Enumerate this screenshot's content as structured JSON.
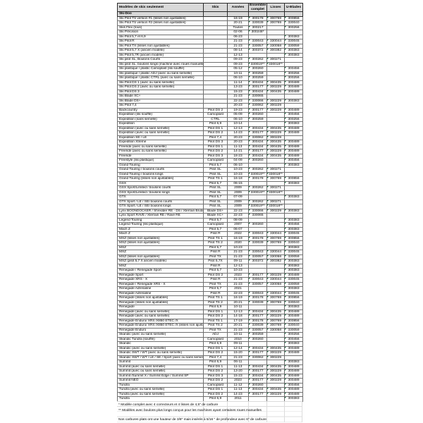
{
  "colors": {
    "header_bg": "#d9d9d9",
    "section_bg": "#d9d9d9",
    "grid_border": "#6f6f6f",
    "outer_border": "#2b2b2b",
    "error_indicator_green": "#1e7145",
    "faint_gridline": "#dcdcdc"
  },
  "table": {
    "headers": [
      "Modèles de skis seulement",
      "Skis",
      "Années",
      "Ensemble complet",
      "Lisses",
      "U-Blades"
    ],
    "section": "Ski-Doo",
    "rows": [
      [
        "Ski Pilot TS version #1 (lisses non ajustables)",
        "",
        "16-19",
        "300178",
        "300769",
        "300856"
      ],
      [
        "Ski Pilot TS version #2 (lisses non ajustables)",
        "",
        "20-21",
        "330039",
        "300769",
        "330040"
      ],
      [
        "Skis Flex (tous)",
        "",
        "Toutes",
        "300217",
        "",
        "300256"
      ],
      [
        "Ski Précision",
        "",
        "02-06",
        "300248*",
        "",
        ""
      ],
      [
        "Ski Pilot 5,7 et 6,9",
        "",
        "06-23",
        "",
        "",
        "300383"
      ],
      [
        "Ski Pilot R",
        "",
        "21-23",
        "330043",
        "330044",
        "330045"
      ],
      [
        "Ski Pilot TX (lisses non ajustables)",
        "",
        "21-23",
        "330057",
        "330058",
        "330059"
      ],
      [
        "Ski Pilot 5,7 X (ancien modèle)",
        "",
        "08-14",
        "300372",
        "300382",
        "300383"
      ],
      [
        "Ski Pilot 5,7R (ancien modèle)",
        "",
        "12-13",
        "",
        "",
        "300383"
      ],
      [
        "Ski pilot SL, Boulons Courts",
        "",
        "09-23",
        "300262",
        "300271",
        ""
      ],
      [
        "Ski pilot SL, boulons longs (machine avec roues manuelles)",
        "",
        "09-23",
        "330019**",
        "330018**",
        ""
      ],
      [
        "Ski plastique / plastic Camoplast (ski soufflé)",
        "",
        "05-12",
        "300260",
        "",
        "300456"
      ],
      [
        "Ski plastique / plastic ADJ (avec ou sans semelle)",
        "",
        "10-11",
        "300259",
        "",
        "300256"
      ],
      [
        "Ski plastique / plastic CTRL (avec ou sans semelle)",
        "",
        "06-10",
        "300259",
        "",
        "300256"
      ],
      [
        "Ski Pilot DS 1 (avec ou sans semelle)",
        "",
        "11-14",
        "300434",
        "300435",
        "300489"
      ],
      [
        "Ski Pilot DS 2 (avec ou sans semelle)",
        "",
        "13-23",
        "300177",
        "300229",
        "300489"
      ],
      [
        "Ski Pilot DS 3",
        "",
        "15-23",
        "300434",
        "300435",
        "300489"
      ],
      [
        "Ski Blade XC+",
        "",
        "21-23",
        "330065",
        "",
        ""
      ],
      [
        "Ski Blade DS+",
        "",
        "22-23",
        "330066",
        "300229",
        "300383"
      ],
      [
        "Ski Pilot 7,4",
        "",
        "20-23",
        "330062",
        "300229",
        ""
      ],
      [
        "Backcountry",
        "Pilot DS 2",
        "19-23",
        "300177",
        "300229",
        "300489"
      ],
      [
        "Expedition (ski soufflé)",
        "Camoplast",
        "05-09",
        "300260",
        "",
        "300456"
      ],
      [
        "Expedition (sans semelle)",
        "CTRL",
        "06-10",
        "300259",
        "",
        "300256"
      ],
      [
        "Expedition",
        "Pilot 6,9",
        "10-14",
        "",
        "",
        "300383"
      ],
      [
        "Expedition (avec ou sans semelle)",
        "Pilot DS 1",
        "12-13",
        "300434",
        "300435",
        "300489"
      ],
      [
        "Expedition (avec ou sans semelle)",
        "Pilot DS 2",
        "14-23",
        "300177",
        "300229",
        "300489"
      ],
      [
        "Expedition SE / LE",
        "Pilot 7,4",
        "20-23",
        "330062",
        "300229",
        ""
      ],
      [
        "Expedition Xtreme",
        "Pilot DS 3",
        "20-23",
        "300434",
        "300435",
        "300489"
      ],
      [
        "Freeride (avec ou sans semelle)",
        "Pilot DS 1",
        "11-13",
        "300434",
        "300435",
        "300489"
      ],
      [
        "Freeride (avec ou sans semelle)",
        "Pilot DS 2",
        "14-21",
        "300177",
        "300229",
        "300489"
      ],
      [
        "Freeride",
        "Pilot DS 3",
        "18-23",
        "300434",
        "300435",
        "300489"
      ],
      [
        "Freestyle (ski plastique)",
        "Camoplast",
        "04-09",
        "300260",
        "",
        "300456"
      ],
      [
        "Grand Touring",
        "Pilot 5,7",
        "06-10",
        "",
        "",
        "300383"
      ],
      [
        "Grand Touring / boulons courts",
        "Pilot SL",
        "10-23",
        "300262",
        "300271",
        ""
      ],
      [
        "Grand Touring / boulons longs",
        "Pilot SL",
        "10-23",
        "330019**",
        "330018**",
        ""
      ],
      [
        "Grand Touring (lisses non ajustables)",
        "Pilot TS 1",
        "16-18",
        "300178",
        "300769",
        "300856"
      ],
      [
        "GSX",
        "Pilot 5,7",
        "06-15",
        "",
        "",
        "300383"
      ],
      [
        "GSX Sport/Limited / boulons courts",
        "Pilot SL",
        "2009",
        "300262",
        "300271",
        ""
      ],
      [
        "GSX Sport/Limited / boulons longs",
        "Pilot SL",
        "2009",
        "330019**",
        "330018**",
        ""
      ],
      [
        "GTX",
        "Pilot 5,7",
        "07-09",
        "",
        "",
        "300383"
      ],
      [
        "GTX Sport / LE / SE/ boulons courts",
        "Pilot SL",
        "2009",
        "300262",
        "300271",
        ""
      ],
      [
        "GTX Sport / LE / SE/ boulons longs",
        "Pilot SL",
        "2009",
        "330019**",
        "330018**",
        ""
      ],
      [
        "Lynx BOONDOCKER / Shredder RE - DS / Xterrain Brutal",
        "Blade DS+",
        "22-23",
        "330066",
        "300229",
        "300383"
      ],
      [
        "Lynx Sport RAVE / Xterrain RE / Rave RE",
        "Blade XC+",
        "22-23",
        "330065",
        "",
        ""
      ],
      [
        "Legend Touring",
        "Pilot 5,7",
        "08-09",
        "",
        "",
        "300383"
      ],
      [
        "Legend Touring (ski plastique)",
        "Camoplast",
        "2007",
        "300260",
        "",
        "300456"
      ],
      [
        "Mach Z",
        "Pilot 5,7",
        "06-07",
        "",
        "",
        "300383"
      ],
      [
        "Mach Z",
        "Pilot R",
        "2022",
        "330043",
        "330044",
        "330045"
      ],
      [
        "MXZ (lisses non ajustables)",
        "Pilot TS 1",
        "16-19",
        "300178",
        "300769",
        "300856"
      ],
      [
        "MXZ (lisses non ajustables)",
        "Pilot TS 2",
        "2020",
        "330039",
        "300769",
        "330040"
      ],
      [
        "MXZ",
        "Pilot 5,7",
        "10-23",
        "",
        "",
        "300383"
      ],
      [
        "MXZ",
        "Pilot R",
        "21-23",
        "330043",
        "330044",
        "330045"
      ],
      [
        "MXZ (lisses non ajustables)",
        "Pilot TX",
        "21-23",
        "330057",
        "330058",
        "330059"
      ],
      [
        "MXZ (pilot 5,7 X ancien modèle)",
        "Pilot 5,7X",
        "09-11",
        "300372",
        "300382",
        "300383"
      ],
      [
        "MXZ",
        "Pilot R",
        "12-13",
        "",
        "",
        "300383"
      ],
      [
        "Renegade / Renegade Sport",
        "Pilot 5,7",
        "10-23",
        "",
        "",
        "300383"
      ],
      [
        "Renegade Sport",
        "Pilot DS 2",
        "2023",
        "300177",
        "300229",
        "300489"
      ],
      [
        "Renegade XRS - X",
        "Pilot R",
        "21-23",
        "330043",
        "330044",
        "330045"
      ],
      [
        "Renegade / Renegade XRS - X",
        "Pilot TX",
        "21-23",
        "330057",
        "330058",
        "330059"
      ],
      [
        "Renegade Adrenaline",
        "Pilot 5,7",
        "2021",
        "",
        "",
        "300383"
      ],
      [
        "Renegade Adrenaline",
        "Pilot R",
        "22-23",
        "330043",
        "330044",
        "330045"
      ],
      [
        "Renegade (lisses non ajustables)",
        "Pilot TS 1",
        "16-19",
        "300178",
        "300769",
        "300856"
      ],
      [
        "Renegade (lisses non ajustables)",
        "Pilot TS 2",
        "20-21",
        "330039",
        "300769",
        "330040"
      ],
      [
        "Renegade",
        "Pilot 6,9",
        "10-11",
        "",
        "",
        "300383"
      ],
      [
        "Renegade (avec ou sans semelle)",
        "Pilot DS 1",
        "12-13",
        "300434",
        "300435",
        "300489"
      ],
      [
        "Renegade (avec ou sans semelle)",
        "Pilot DS 2",
        "14-18",
        "300177",
        "300229",
        "300489"
      ],
      [
        "Renegade Enduro/ XRS /X850 ETEC /X",
        "Pilot TS 1",
        "17-19",
        "300178",
        "300769",
        "300856"
      ],
      [
        "Renegade Enduro/ XRS /X850 ETEC /X (lisses non ajustables)",
        "Pilot TS 2",
        "20-21",
        "330039",
        "300769",
        "330040"
      ],
      [
        "Renegade Enduro",
        "Pilot TX",
        "21-23",
        "330057",
        "330058",
        "330059"
      ],
      [
        "Skandic (avec ou sans semelle)",
        "ADJ",
        "10-11",
        "300259",
        "",
        "300256"
      ],
      [
        "Skandic Tundra (soufflé)",
        "Camoplast",
        "2010",
        "300260",
        "",
        "300456"
      ],
      [
        "Skandic",
        "Pilot 6,9",
        "09-11",
        "",
        "",
        "300383"
      ],
      [
        "Skandic (avec ou sans semelle)",
        "Pilot DS 1",
        "12-14",
        "300434",
        "300435",
        "300489"
      ],
      [
        "Skandic SWT / WT (avec ou sans semelle)",
        "Pilot DS 2",
        "15-20",
        "300177",
        "300229",
        "300489"
      ],
      [
        "Skandic SWT / WT / LE / SE / Sport (avec ou sans semelle)",
        "Pilot 7,4",
        "21-23",
        "330062",
        "300229",
        ""
      ],
      [
        "Summit",
        "Pilot 6,9",
        "06-11",
        "",
        "",
        "300383"
      ],
      [
        "Summit (avec ou sans semelle)",
        "Pilot DS 1",
        "11-13",
        "300434",
        "300435",
        "300489"
      ],
      [
        "Summit (avec ou sans semelle)",
        "Pilot DS 2",
        "13-20",
        "300177",
        "300229",
        "300489"
      ],
      [
        "Summit /Summit X / Summit Edge / Summit SP",
        "Pilot DS 3",
        "15-23",
        "300434",
        "300435",
        "300489"
      ],
      [
        "Summit NEO",
        "Pilot DS 2",
        "2023",
        "300177",
        "300229",
        "300489"
      ],
      [
        "Tundra",
        "Camoplast",
        "11-12",
        "300260",
        "",
        "300456"
      ],
      [
        "Tundra (avec ou sans semelle)",
        "Pilot DS 1",
        "11-13",
        "300434",
        "300435",
        "300489"
      ],
      [
        "Tundra (avec ou sans semelle)",
        "Pilot DS 2",
        "14-23",
        "300177",
        "300229",
        "300489"
      ],
      [
        "Tundra",
        "Pilot 6,9",
        "2011",
        "",
        "",
        "300383"
      ]
    ]
  },
  "footnotes": {
    "note1": "* Modèle complet avec 4 correcteurs et 4 lisses de 4,5\" de carbure",
    "note2": "** Modèles avec boulons plus longs conçus pour les machines ayant certaines roues manuelles",
    "note3": "Nos carbures plats ont une hauteur de 3/8\" mais insérés à 5/16 \" de profondeur avec 6\" de carbure"
  }
}
